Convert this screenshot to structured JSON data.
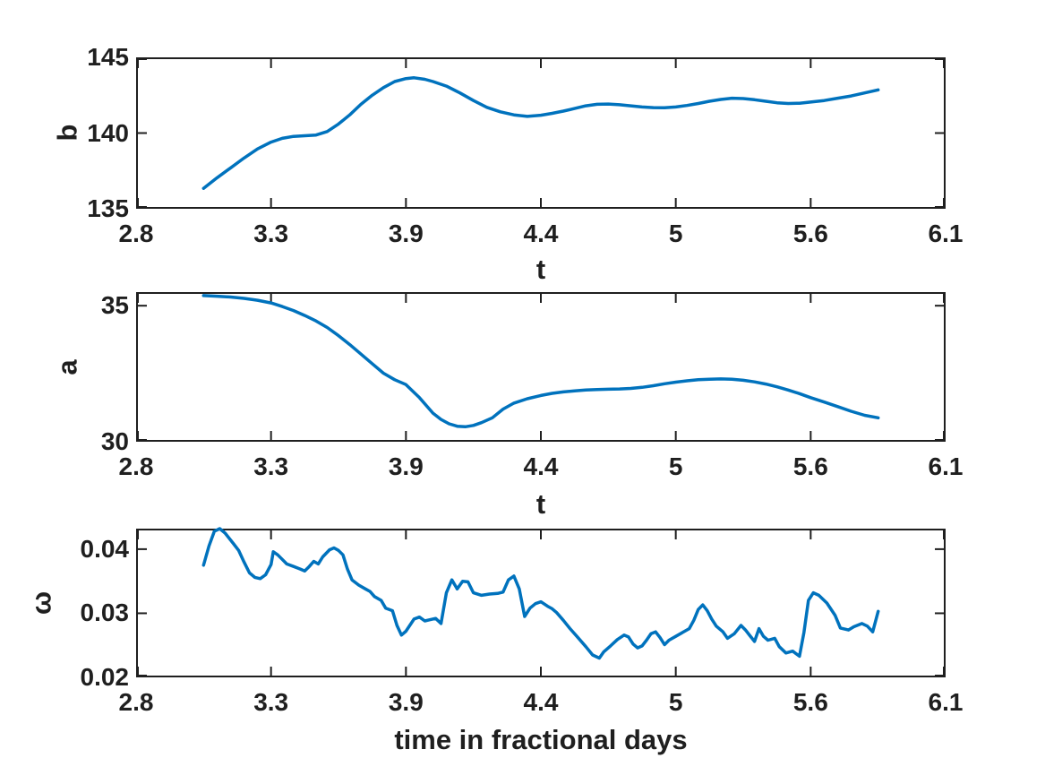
{
  "figure": {
    "background": "#ffffff",
    "line_color": "#0072BD",
    "axis_color": "#1f1f1f",
    "text_color": "#1f1f1f"
  },
  "chart_data": [
    {
      "type": "line",
      "title": "",
      "xlabel": "t",
      "ylabel": "b",
      "xlim": [
        2.8,
        6.1
      ],
      "ylim": [
        135,
        145
      ],
      "xticks": [
        2.8,
        3.3,
        3.9,
        4.4,
        5,
        5.6,
        6.1
      ],
      "xtick_labels": [
        "2.8",
        "3.3",
        "3.9",
        "4.4",
        "5",
        "5.6",
        "6.1"
      ],
      "yticks": [
        135,
        140,
        145
      ],
      "ytick_labels": [
        "135",
        "140",
        "145"
      ],
      "grid": false,
      "legend": null,
      "series": [
        {
          "name": "b",
          "x": [
            3.05,
            3.1,
            3.15,
            3.2,
            3.25,
            3.3,
            3.35,
            3.4,
            3.45,
            3.5,
            3.55,
            3.6,
            3.65,
            3.7,
            3.75,
            3.8,
            3.85,
            3.9,
            3.93,
            3.97,
            4.0,
            4.05,
            4.1,
            4.15,
            4.2,
            4.25,
            4.3,
            4.35,
            4.4,
            4.45,
            4.5,
            4.55,
            4.6,
            4.65,
            4.7,
            4.75,
            4.8,
            4.85,
            4.9,
            4.95,
            5.0,
            5.05,
            5.1,
            5.15,
            5.2,
            5.25,
            5.3,
            5.35,
            5.4,
            5.45,
            5.5,
            5.55,
            5.6,
            5.65,
            5.7,
            5.75,
            5.8,
            5.85
          ],
          "y": [
            136.35,
            137.05,
            137.7,
            138.35,
            138.95,
            139.4,
            139.65,
            139.78,
            139.82,
            139.87,
            140.1,
            140.6,
            141.2,
            141.9,
            142.5,
            143.0,
            143.4,
            143.6,
            143.65,
            143.55,
            143.4,
            143.1,
            142.65,
            142.15,
            141.7,
            141.4,
            141.2,
            141.1,
            141.18,
            141.3,
            141.45,
            141.62,
            141.8,
            141.9,
            141.92,
            141.87,
            141.8,
            141.72,
            141.68,
            141.67,
            141.72,
            141.82,
            141.95,
            142.1,
            142.22,
            142.3,
            142.28,
            142.2,
            142.1,
            142.0,
            141.95,
            141.97,
            142.05,
            142.15,
            142.3,
            142.45,
            142.65,
            142.85
          ]
        }
      ]
    },
    {
      "type": "line",
      "title": "",
      "xlabel": "t",
      "ylabel": "a",
      "xlim": [
        2.8,
        6.1
      ],
      "ylim": [
        30,
        35.5
      ],
      "xticks": [
        2.8,
        3.3,
        3.9,
        4.4,
        5,
        5.6,
        6.1
      ],
      "xtick_labels": [
        "2.8",
        "3.3",
        "3.9",
        "4.4",
        "5",
        "5.6",
        "6.1"
      ],
      "yticks": [
        30,
        35
      ],
      "ytick_labels": [
        "30",
        "35"
      ],
      "grid": false,
      "legend": null,
      "series": [
        {
          "name": "a",
          "x": [
            3.05,
            3.1,
            3.15,
            3.2,
            3.25,
            3.3,
            3.35,
            3.4,
            3.45,
            3.5,
            3.55,
            3.6,
            3.65,
            3.7,
            3.75,
            3.8,
            3.85,
            3.9,
            3.95,
            4.0,
            4.03,
            4.06,
            4.09,
            4.12,
            4.15,
            4.18,
            4.22,
            4.26,
            4.3,
            4.35,
            4.4,
            4.45,
            4.5,
            4.55,
            4.6,
            4.65,
            4.7,
            4.75,
            4.8,
            4.85,
            4.9,
            4.95,
            5.0,
            5.05,
            5.1,
            5.15,
            5.2,
            5.25,
            5.3,
            5.35,
            5.4,
            5.45,
            5.5,
            5.55,
            5.6,
            5.65,
            5.7,
            5.75,
            5.8,
            5.85
          ],
          "y": [
            35.37,
            35.35,
            35.32,
            35.27,
            35.2,
            35.1,
            34.97,
            34.82,
            34.64,
            34.44,
            34.2,
            33.9,
            33.57,
            33.22,
            32.87,
            32.52,
            32.28,
            32.1,
            31.62,
            31.05,
            30.82,
            30.66,
            30.57,
            30.55,
            30.6,
            30.7,
            30.88,
            31.2,
            31.42,
            31.58,
            31.7,
            31.78,
            31.83,
            31.87,
            31.9,
            31.92,
            31.93,
            31.94,
            31.96,
            32.0,
            32.06,
            32.13,
            32.19,
            32.24,
            32.28,
            32.3,
            32.31,
            32.3,
            32.26,
            32.2,
            32.12,
            32.02,
            31.9,
            31.77,
            31.62,
            31.46,
            31.29,
            31.12,
            30.97,
            30.88
          ]
        }
      ]
    },
    {
      "type": "line",
      "title": "",
      "xlabel": "time in fractional days",
      "ylabel": "ω",
      "xlim": [
        2.8,
        6.1
      ],
      "ylim": [
        0.02,
        0.0432
      ],
      "xticks": [
        2.8,
        3.3,
        3.9,
        4.4,
        5,
        5.6,
        6.1
      ],
      "xtick_labels": [
        "2.8",
        "3.3",
        "3.9",
        "4.4",
        "5",
        "5.6",
        "6.1"
      ],
      "yticks": [
        0.02,
        0.03,
        0.04
      ],
      "ytick_labels": [
        "0.02",
        "0.03",
        "0.04"
      ],
      "grid": false,
      "legend": null,
      "series": [
        {
          "name": "omega",
          "x": [
            3.05,
            3.07,
            3.09,
            3.11,
            3.13,
            3.16,
            3.18,
            3.2,
            3.22,
            3.24,
            3.26,
            3.28,
            3.3,
            3.31,
            3.33,
            3.35,
            3.37,
            3.4,
            3.43,
            3.45,
            3.47,
            3.49,
            3.51,
            3.53,
            3.56,
            3.58,
            3.6,
            3.62,
            3.64,
            3.66,
            3.69,
            3.72,
            3.74,
            3.76,
            3.79,
            3.81,
            3.84,
            3.86,
            3.88,
            3.9,
            3.93,
            3.95,
            3.97,
            3.99,
            4.01,
            4.03,
            4.05,
            4.07,
            4.09,
            4.11,
            4.13,
            4.15,
            4.18,
            4.21,
            4.24,
            4.26,
            4.28,
            4.3,
            4.32,
            4.34,
            4.36,
            4.38,
            4.4,
            4.43,
            4.45,
            4.47,
            4.5,
            4.53,
            4.56,
            4.6,
            4.63,
            4.66,
            4.68,
            4.71,
            4.74,
            4.77,
            4.79,
            4.81,
            4.83,
            4.85,
            4.87,
            4.89,
            4.91,
            4.93,
            4.95,
            4.97,
            5.0,
            5.03,
            5.06,
            5.08,
            5.1,
            5.12,
            5.14,
            5.16,
            5.18,
            5.21,
            5.23,
            5.26,
            5.29,
            5.31,
            5.33,
            5.35,
            5.37,
            5.39,
            5.41,
            5.44,
            5.46,
            5.49,
            5.52,
            5.55,
            5.57,
            5.59,
            5.61,
            5.63,
            5.66,
            5.69,
            5.71,
            5.74,
            5.76,
            5.79,
            5.81,
            5.83,
            5.85
          ],
          "y": [
            0.0375,
            0.0405,
            0.0428,
            0.0432,
            0.0425,
            0.0409,
            0.0398,
            0.038,
            0.0363,
            0.0356,
            0.0354,
            0.036,
            0.0376,
            0.0396,
            0.0391,
            0.0384,
            0.0377,
            0.0373,
            0.0369,
            0.0366,
            0.0373,
            0.0381,
            0.0377,
            0.0388,
            0.0399,
            0.0402,
            0.0398,
            0.0391,
            0.0369,
            0.0352,
            0.0344,
            0.0338,
            0.0334,
            0.0326,
            0.032,
            0.0308,
            0.0304,
            0.0281,
            0.0266,
            0.0272,
            0.0291,
            0.0294,
            0.0288,
            0.029,
            0.0292,
            0.0284,
            0.0332,
            0.0352,
            0.0338,
            0.035,
            0.0349,
            0.0332,
            0.0328,
            0.033,
            0.0331,
            0.0333,
            0.0352,
            0.0358,
            0.0338,
            0.0295,
            0.0308,
            0.0315,
            0.0318,
            0.0311,
            0.0307,
            0.0301,
            0.0289,
            0.0276,
            0.0264,
            0.0248,
            0.0235,
            0.023,
            0.024,
            0.0249,
            0.0259,
            0.0266,
            0.0263,
            0.0252,
            0.0246,
            0.0249,
            0.0258,
            0.0268,
            0.0271,
            0.0262,
            0.0251,
            0.0258,
            0.0264,
            0.027,
            0.0276,
            0.0289,
            0.0306,
            0.0313,
            0.0304,
            0.0291,
            0.028,
            0.0271,
            0.0261,
            0.0268,
            0.0281,
            0.0274,
            0.0265,
            0.0256,
            0.0276,
            0.0264,
            0.0258,
            0.0261,
            0.0248,
            0.0238,
            0.0241,
            0.0233,
            0.027,
            0.032,
            0.0332,
            0.0328,
            0.0316,
            0.0297,
            0.0277,
            0.0274,
            0.0279,
            0.0284,
            0.028,
            0.0271,
            0.0303
          ]
        }
      ]
    }
  ]
}
